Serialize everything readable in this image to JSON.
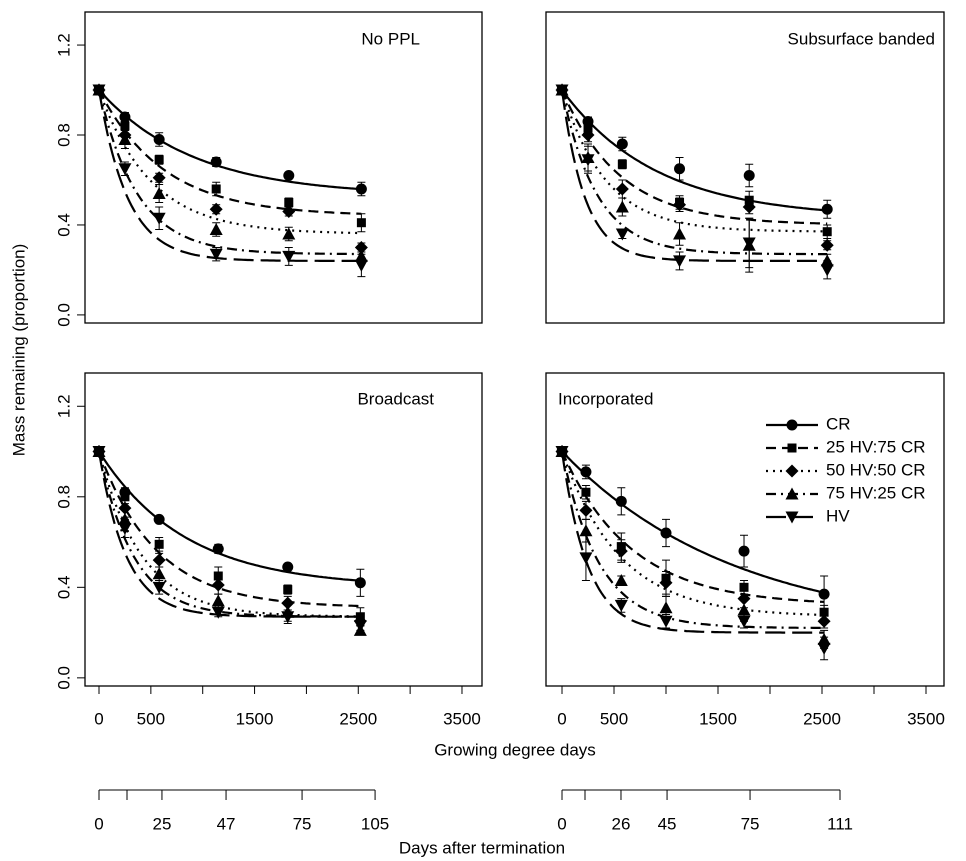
{
  "y_label": "Mass remaining (proportion)",
  "x_label": "Growing degree days",
  "x2_label": "Days after termination",
  "chart_data": [
    {
      "type": "scatter",
      "title": "No PPL",
      "xlim": [
        -135,
        3693
      ],
      "ylim": [
        -0.036,
        1.347
      ],
      "yticks": [
        {
          "value": 0,
          "label": "0.0"
        },
        {
          "value": 0.4,
          "label": "0.4"
        },
        {
          "value": 0.8,
          "label": "0.8"
        },
        {
          "value": 1.2,
          "label": "1.2"
        }
      ],
      "x": [
        0,
        250,
        580,
        1130,
        1830,
        2530
      ],
      "series": [
        {
          "name": "CR",
          "marker": "circle",
          "linestyle": "solid",
          "color": "#000000",
          "values": [
            1.0,
            0.88,
            0.78,
            0.68,
            0.62,
            0.56
          ],
          "errors": [
            0.01,
            0.02,
            0.03,
            0.02,
            0.01,
            0.03
          ],
          "fit": {
            "asymptote": 0.53,
            "rate": 0.0011
          }
        },
        {
          "name": "25 HV:75 CR",
          "marker": "square",
          "linestyle": "dashed",
          "color": "#000000",
          "values": [
            1.0,
            0.84,
            0.69,
            0.56,
            0.5,
            0.41
          ],
          "errors": [
            0.01,
            0.02,
            0.02,
            0.03,
            0.02,
            0.04
          ],
          "fit": {
            "asymptote": 0.44,
            "rate": 0.0016
          }
        },
        {
          "name": "50 HV:50 CR",
          "marker": "diamond",
          "linestyle": "dotted",
          "color": "#000000",
          "values": [
            1.0,
            0.8,
            0.61,
            0.47,
            0.46,
            0.3
          ],
          "errors": [
            0.01,
            0.03,
            0.02,
            0.02,
            0.02,
            0.02
          ],
          "fit": {
            "asymptote": 0.36,
            "rate": 0.002
          }
        },
        {
          "name": "75 HV:25 CR",
          "marker": "triangle-up",
          "linestyle": "dotdash",
          "color": "#000000",
          "values": [
            1.0,
            0.78,
            0.54,
            0.38,
            0.36,
            0.26
          ],
          "errors": [
            0.01,
            0.04,
            0.04,
            0.03,
            0.03,
            0.03
          ],
          "fit": {
            "asymptote": 0.27,
            "rate": 0.0027
          }
        },
        {
          "name": "HV",
          "marker": "triangle-down",
          "linestyle": "longdash",
          "color": "#000000",
          "values": [
            1.0,
            0.65,
            0.43,
            0.27,
            0.26,
            0.22
          ],
          "errors": [
            0.01,
            0.03,
            0.05,
            0.03,
            0.04,
            0.05
          ],
          "fit": {
            "asymptote": 0.24,
            "rate": 0.0036
          }
        }
      ]
    },
    {
      "type": "scatter",
      "title": "Subsurface banded",
      "xlim": [
        -154,
        3673
      ],
      "ylim": [
        -0.036,
        1.347
      ],
      "x": [
        0,
        250,
        580,
        1130,
        1800,
        2550
      ],
      "series": [
        {
          "name": "CR",
          "marker": "circle",
          "linestyle": "solid",
          "color": "#000000",
          "values": [
            1.0,
            0.86,
            0.76,
            0.65,
            0.62,
            0.47
          ],
          "errors": [
            0.01,
            0.02,
            0.03,
            0.05,
            0.05,
            0.04
          ],
          "fit": {
            "asymptote": 0.43,
            "rate": 0.0011
          }
        },
        {
          "name": "25 HV:75 CR",
          "marker": "square",
          "linestyle": "dashed",
          "color": "#000000",
          "values": [
            1.0,
            0.83,
            0.67,
            0.5,
            0.51,
            0.37
          ],
          "errors": [
            0.01,
            0.03,
            0.02,
            0.03,
            0.04,
            0.03
          ],
          "fit": {
            "asymptote": 0.4,
            "rate": 0.0018
          }
        },
        {
          "name": "50 HV:50 CR",
          "marker": "diamond",
          "linestyle": "dotted",
          "color": "#000000",
          "values": [
            1.0,
            0.8,
            0.56,
            0.49,
            0.48,
            0.31
          ],
          "errors": [
            0.01,
            0.03,
            0.04,
            0.03,
            0.03,
            0.02
          ],
          "fit": {
            "asymptote": 0.37,
            "rate": 0.0024
          }
        },
        {
          "name": "75 HV:25 CR",
          "marker": "triangle-up",
          "linestyle": "dotdash",
          "color": "#000000",
          "values": [
            1.0,
            0.7,
            0.48,
            0.36,
            0.31,
            0.24
          ],
          "errors": [
            0.01,
            0.06,
            0.04,
            0.05,
            0.12,
            0.03
          ],
          "fit": {
            "asymptote": 0.27,
            "rate": 0.003
          }
        },
        {
          "name": "HV",
          "marker": "triangle-down",
          "linestyle": "longdash",
          "color": "#000000",
          "values": [
            1.0,
            0.69,
            0.36,
            0.24,
            0.32,
            0.2
          ],
          "errors": [
            0.01,
            0.06,
            0.02,
            0.04,
            0.11,
            0.04
          ],
          "fit": {
            "asymptote": 0.24,
            "rate": 0.0045
          }
        }
      ]
    },
    {
      "type": "scatter",
      "title": "Broadcast",
      "xlim": [
        -135,
        3693
      ],
      "ylim": [
        -0.036,
        1.347
      ],
      "xticks": [
        0,
        500,
        1500,
        2500,
        3500
      ],
      "xticks_unlabeled": [
        1000,
        2000,
        3000
      ],
      "yticks": [
        {
          "value": 0,
          "label": "0.0"
        },
        {
          "value": 0.4,
          "label": "0.4"
        },
        {
          "value": 0.8,
          "label": "0.8"
        },
        {
          "value": 1.2,
          "label": "1.2"
        }
      ],
      "day_ticks": [
        {
          "value": 0,
          "label": "0"
        },
        {
          "value": 607,
          "label": "25"
        },
        {
          "value": 1225,
          "label": "47"
        },
        {
          "value": 1958,
          "label": "75"
        },
        {
          "value": 2662,
          "label": "105"
        }
      ],
      "day_ticks_unlabeled": [
        270
      ],
      "x": [
        0,
        250,
        580,
        1150,
        1820,
        2520
      ],
      "series": [
        {
          "name": "CR",
          "marker": "circle",
          "linestyle": "solid",
          "color": "#000000",
          "values": [
            1.0,
            0.82,
            0.7,
            0.57,
            0.49,
            0.42
          ],
          "errors": [
            0.01,
            0.02,
            0.01,
            0.02,
            0.01,
            0.06
          ],
          "fit": {
            "asymptote": 0.4,
            "rate": 0.0012
          }
        },
        {
          "name": "25 HV:75 CR",
          "marker": "square",
          "linestyle": "dashed",
          "color": "#000000",
          "values": [
            1.0,
            0.8,
            0.59,
            0.45,
            0.39,
            0.27
          ],
          "errors": [
            0.01,
            0.03,
            0.03,
            0.04,
            0.02,
            0.04
          ],
          "fit": {
            "asymptote": 0.31,
            "rate": 0.0018
          }
        },
        {
          "name": "50 HV:50 CR",
          "marker": "diamond",
          "linestyle": "dotted",
          "color": "#000000",
          "values": [
            1.0,
            0.75,
            0.52,
            0.41,
            0.33,
            0.25
          ],
          "errors": [
            0.01,
            0.04,
            0.03,
            0.04,
            0.03,
            0.02
          ],
          "fit": {
            "asymptote": 0.27,
            "rate": 0.0024
          }
        },
        {
          "name": "75 HV:25 CR",
          "marker": "triangle-up",
          "linestyle": "dotdash",
          "color": "#000000",
          "values": [
            1.0,
            0.7,
            0.46,
            0.34,
            0.29,
            0.21
          ],
          "errors": [
            0.01,
            0.05,
            0.03,
            0.03,
            0.04,
            0.02
          ],
          "fit": {
            "asymptote": 0.27,
            "rate": 0.003
          }
        },
        {
          "name": "HV",
          "marker": "triangle-down",
          "linestyle": "longdash",
          "color": "#000000",
          "values": [
            1.0,
            0.66,
            0.4,
            0.29,
            0.27,
            0.23
          ],
          "errors": [
            0.01,
            0.04,
            0.03,
            0.02,
            0.03,
            0.02
          ],
          "fit": {
            "asymptote": 0.27,
            "rate": 0.0038
          }
        }
      ]
    },
    {
      "type": "scatter",
      "title": "Incorporated",
      "xlim": [
        -154,
        3673
      ],
      "ylim": [
        -0.036,
        1.347
      ],
      "legend": "topright",
      "xticks": [
        0,
        500,
        1500,
        2500,
        3500
      ],
      "xticks_unlabeled": [
        1000,
        2000,
        3000
      ],
      "day_ticks": [
        {
          "value": 0,
          "label": "0"
        },
        {
          "value": 567,
          "label": "26"
        },
        {
          "value": 1010,
          "label": "45"
        },
        {
          "value": 1808,
          "label": "75"
        },
        {
          "value": 2673,
          "label": "111"
        }
      ],
      "day_ticks_unlabeled": [
        221
      ],
      "x": [
        0,
        230,
        570,
        1000,
        1750,
        2520
      ],
      "series": [
        {
          "name": "CR",
          "marker": "circle",
          "linestyle": "solid",
          "color": "#000000",
          "values": [
            1.0,
            0.91,
            0.78,
            0.64,
            0.56,
            0.37
          ],
          "errors": [
            0.01,
            0.03,
            0.06,
            0.06,
            0.07,
            0.08
          ],
          "fit": {
            "asymptote": 0.2,
            "rate": 0.0006
          }
        },
        {
          "name": "25 HV:75 CR",
          "marker": "square",
          "linestyle": "dashed",
          "color": "#000000",
          "values": [
            1.0,
            0.82,
            0.58,
            0.44,
            0.4,
            0.29
          ],
          "errors": [
            0.01,
            0.03,
            0.06,
            0.08,
            0.03,
            0.03
          ],
          "fit": {
            "asymptote": 0.32,
            "rate": 0.0015
          }
        },
        {
          "name": "50 HV:50 CR",
          "marker": "diamond",
          "linestyle": "dotted",
          "color": "#000000",
          "values": [
            1.0,
            0.74,
            0.56,
            0.42,
            0.35,
            0.25
          ],
          "errors": [
            0.01,
            0.04,
            0.05,
            0.05,
            0.04,
            0.03
          ],
          "fit": {
            "asymptote": 0.27,
            "rate": 0.0018
          }
        },
        {
          "name": "75 HV:25 CR",
          "marker": "triangle-up",
          "linestyle": "dotdash",
          "color": "#000000",
          "values": [
            1.0,
            0.65,
            0.43,
            0.31,
            0.3,
            0.17
          ],
          "errors": [
            0.01,
            0.05,
            0.02,
            0.05,
            0.05,
            0.04
          ],
          "fit": {
            "asymptote": 0.22,
            "rate": 0.0028
          }
        },
        {
          "name": "HV",
          "marker": "triangle-down",
          "linestyle": "longdash",
          "color": "#000000",
          "values": [
            1.0,
            0.53,
            0.32,
            0.25,
            0.25,
            0.13
          ],
          "errors": [
            0.01,
            0.1,
            0.03,
            0.03,
            0.03,
            0.05
          ],
          "fit": {
            "asymptote": 0.2,
            "rate": 0.004
          }
        }
      ]
    }
  ]
}
